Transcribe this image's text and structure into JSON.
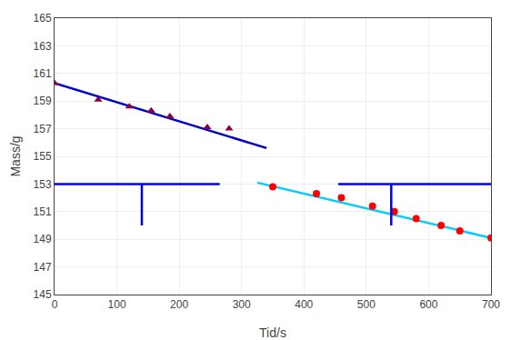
{
  "chart_data": {
    "type": "scatter",
    "xlabel": "Tid/s",
    "ylabel": "Mass/g",
    "xlim": [
      0,
      700
    ],
    "ylim": [
      145,
      165
    ],
    "xticks": [
      0,
      100,
      200,
      300,
      400,
      500,
      600,
      700
    ],
    "yticks": [
      145,
      147,
      149,
      151,
      153,
      155,
      157,
      159,
      161,
      163,
      165
    ],
    "grid": true,
    "series": [
      {
        "type": "line",
        "color": "#0000CC",
        "x": [
          0,
          340
        ],
        "values": [
          160.3,
          155.6
        ]
      },
      {
        "type": "scatter",
        "marker": "triangle-up",
        "color": "#880044",
        "x": [
          0,
          70,
          120,
          155,
          185,
          245,
          280
        ],
        "values": [
          160.3,
          159.1,
          158.6,
          158.3,
          157.9,
          157.1,
          157.0
        ]
      },
      {
        "type": "line",
        "color": "#00CCFF",
        "x": [
          325,
          700
        ],
        "values": [
          153.1,
          149.1
        ]
      },
      {
        "type": "scatter",
        "marker": "circle",
        "color": "#FF0000",
        "x": [
          350,
          420,
          460,
          510,
          545,
          580,
          620,
          650,
          700
        ],
        "values": [
          152.8,
          152.3,
          152.0,
          151.4,
          151.0,
          150.5,
          150.0,
          149.6,
          149.1
        ]
      },
      {
        "type": "line",
        "color": "#0000EE",
        "x": [
          0,
          265
        ],
        "values": [
          153.0,
          153.0
        ]
      },
      {
        "type": "line",
        "color": "#0000EE",
        "x": [
          455,
          700
        ],
        "values": [
          153.0,
          153.0
        ]
      },
      {
        "type": "line",
        "color": "#0000EE",
        "x": [
          140,
          140
        ],
        "values": [
          153.0,
          150.0
        ]
      },
      {
        "type": "line",
        "color": "#0000EE",
        "x": [
          540,
          540
        ],
        "values": [
          153.0,
          150.0
        ]
      }
    ]
  }
}
